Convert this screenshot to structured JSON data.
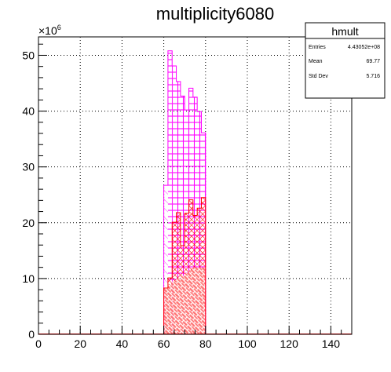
{
  "chart_data": {
    "type": "bar",
    "title": "multiplicity6080",
    "xlabel": "",
    "ylabel": "",
    "xlim": [
      0,
      150
    ],
    "ylim": [
      0,
      53.3
    ],
    "y_multiplier_label": "×10",
    "y_multiplier_exponent": "6",
    "grid": true,
    "x_ticks": [
      "0",
      "20",
      "40",
      "60",
      "80",
      "100",
      "120",
      "140"
    ],
    "y_ticks": [
      "0",
      "10",
      "20",
      "30",
      "40",
      "50"
    ],
    "bin_width": 2,
    "series": [
      {
        "fill": "#ff00ff",
        "style": "hatched-outline",
        "bins": [
          {
            "x": 60,
            "value": 26.7
          },
          {
            "x": 62,
            "value": 50.8
          },
          {
            "x": 64,
            "value": 48.1
          },
          {
            "x": 66,
            "value": 45.3
          },
          {
            "x": 68,
            "value": 42.7
          },
          {
            "x": 70,
            "value": 40.2
          },
          {
            "x": 72,
            "value": 44.1
          },
          {
            "x": 74,
            "value": 42.5
          },
          {
            "x": 76,
            "value": 39.9
          },
          {
            "x": 78,
            "value": 36.1
          }
        ]
      },
      {
        "fill": "#ff0000",
        "style": "cross-hatched",
        "bins": [
          {
            "x": 60,
            "value": 8.3
          },
          {
            "x": 62,
            "value": 10.1
          },
          {
            "x": 64,
            "value": 20.1
          },
          {
            "x": 66,
            "value": 21.8
          },
          {
            "x": 68,
            "value": 15.9
          },
          {
            "x": 70,
            "value": 21.7
          },
          {
            "x": 72,
            "value": 24.1
          },
          {
            "x": 74,
            "value": 21.3
          },
          {
            "x": 76,
            "value": 22.6
          },
          {
            "x": 78,
            "value": 24.5
          }
        ]
      },
      {
        "fill": "#ff0000",
        "style": "brick",
        "bins": [
          {
            "x": 60,
            "value": 8.3
          },
          {
            "x": 62,
            "value": 9.0
          },
          {
            "x": 64,
            "value": 9.5
          },
          {
            "x": 66,
            "value": 10.0
          },
          {
            "x": 68,
            "value": 10.5
          },
          {
            "x": 70,
            "value": 11.0
          },
          {
            "x": 72,
            "value": 11.5
          },
          {
            "x": 74,
            "value": 12.0
          },
          {
            "x": 76,
            "value": 12.0
          },
          {
            "x": 78,
            "value": 12.0
          }
        ]
      }
    ],
    "stats_box": {
      "name": "hmult",
      "rows": [
        {
          "label": "Entries",
          "value": "4.43052e+08"
        },
        {
          "label": "Mean",
          "value": "69.77"
        },
        {
          "label": "Std Dev",
          "value": "5.716"
        }
      ]
    }
  }
}
